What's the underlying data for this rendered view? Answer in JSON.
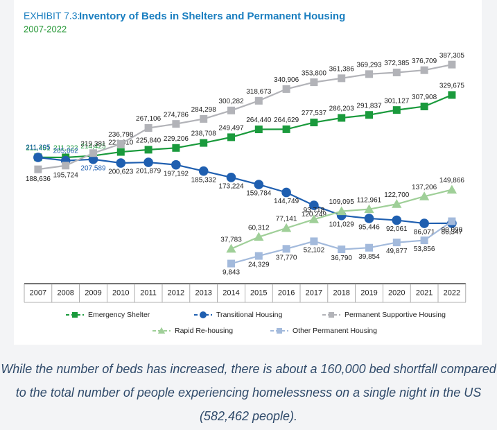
{
  "chart_data": {
    "type": "line",
    "label": "EXHIBIT 7.3:",
    "title": "Inventory of Beds in Shelters and Permanent Housing",
    "subtitle": "2007-2022",
    "categories": [
      "2007",
      "2008",
      "2009",
      "2010",
      "2011",
      "2012",
      "2013",
      "2014",
      "2015",
      "2016",
      "2017",
      "2018",
      "2019",
      "2020",
      "2021",
      "2022"
    ],
    "series": [
      {
        "name": "Emergency Shelter",
        "color": "#1a9a3c",
        "marker": "square",
        "values": [
          211451,
          211222,
          214425,
          221610,
          225840,
          229206,
          238708,
          249497,
          264440,
          264629,
          277537,
          286203,
          291837,
          301127,
          307908,
          329675
        ],
        "value_labels": [
          "211,451",
          "211,222",
          "214,425",
          "221,610",
          "225,840",
          "229,206",
          "238,708",
          "249,497",
          "264,440",
          "264,629",
          "277,537",
          "286,203",
          "291,837",
          "301,127",
          "307,908",
          "329,675"
        ]
      },
      {
        "name": "Transitional Housing",
        "color": "#1f5fb0",
        "marker": "circle",
        "values": [
          211205,
          205062,
          207589,
          200623,
          201879,
          197192,
          185332,
          173224,
          159784,
          144749,
          120249,
          101029,
          95446,
          92061,
          86071,
          86347
        ],
        "value_labels": [
          "211,205",
          "205,062",
          "207,589",
          "200,623",
          "201,879",
          "197,192",
          "185,332",
          "173,224",
          "159,784",
          "144,749",
          "120,249",
          "101,029",
          "95,446",
          "92,061",
          "86,071",
          "86,347"
        ]
      },
      {
        "name": "Permanent Supportive Housing",
        "color": "#b2b3b8",
        "marker": "square",
        "values": [
          188636,
          195724,
          219381,
          236798,
          267106,
          274786,
          284298,
          300282,
          318673,
          340906,
          353800,
          361386,
          369293,
          372385,
          376709,
          387305
        ],
        "value_labels": [
          "188,636",
          "195,724",
          "219,381",
          "236,798",
          "267,106",
          "274,786",
          "284,298",
          "300,282",
          "318,673",
          "340,906",
          "353,800",
          "361,386",
          "369,293",
          "372,385",
          "376,709",
          "387,305"
        ]
      },
      {
        "name": "Rapid Re-housing",
        "color": "#9fcf98",
        "marker": "triangle",
        "values": [
          null,
          null,
          null,
          null,
          null,
          null,
          null,
          37783,
          60312,
          77141,
          93718,
          109095,
          112961,
          122700,
          137206,
          149866
        ],
        "value_labels": [
          null,
          null,
          null,
          null,
          null,
          null,
          null,
          "37,783",
          "60,312",
          "77,141",
          "93,718",
          "109,095",
          "112,961",
          "122,700",
          "137,206",
          "149,866"
        ]
      },
      {
        "name": "Other Permanent Housing",
        "color": "#a3badc",
        "marker": "square",
        "values": [
          null,
          null,
          null,
          null,
          null,
          null,
          null,
          9843,
          24329,
          37770,
          52102,
          36790,
          39854,
          49877,
          53856,
          90098
        ],
        "value_labels": [
          null,
          null,
          null,
          null,
          null,
          null,
          null,
          "9,843",
          "24,329",
          "37,770",
          "52,102",
          "36,790",
          "39,854",
          "49,877",
          "53,856",
          "90,098"
        ]
      }
    ]
  },
  "caption": "While the number of beds has increased, there is about a 160,000 bed shortfall compared to the total number of people experiencing homelessness on a single night in the US (582,462 people)."
}
